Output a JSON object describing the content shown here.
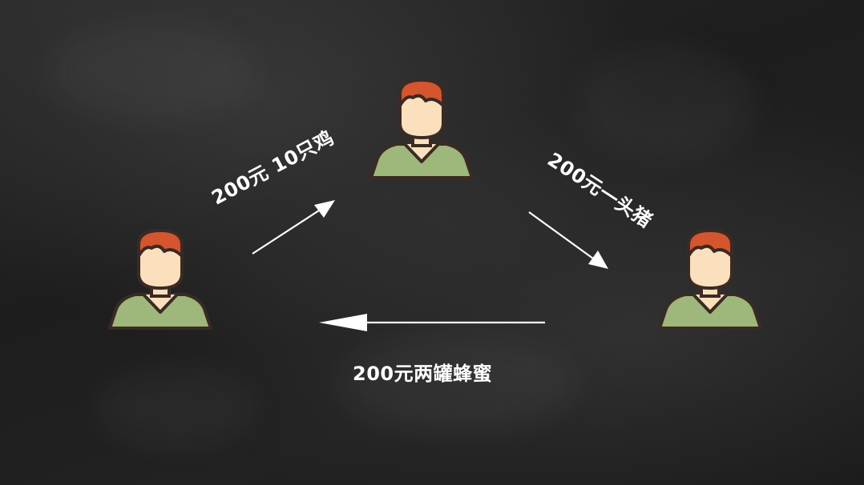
{
  "diagram": {
    "people": [
      {
        "name": "person-left"
      },
      {
        "name": "person-top"
      },
      {
        "name": "person-right"
      }
    ],
    "edges": [
      {
        "from": "person-left",
        "to": "person-top",
        "label": "200元 10只鸡"
      },
      {
        "from": "person-top",
        "to": "person-right",
        "label": "200元一头猪"
      },
      {
        "from": "person-right",
        "to": "person-left",
        "label": "200元两罐蜂蜜"
      }
    ],
    "colors": {
      "background": "#1f1f1f",
      "hair": "#d4552e",
      "skin": "#fbe0bd",
      "shirt": "#9db87a",
      "outline": "#3b2a24",
      "arrow": "#ffffff",
      "label": "#ffffff"
    }
  }
}
